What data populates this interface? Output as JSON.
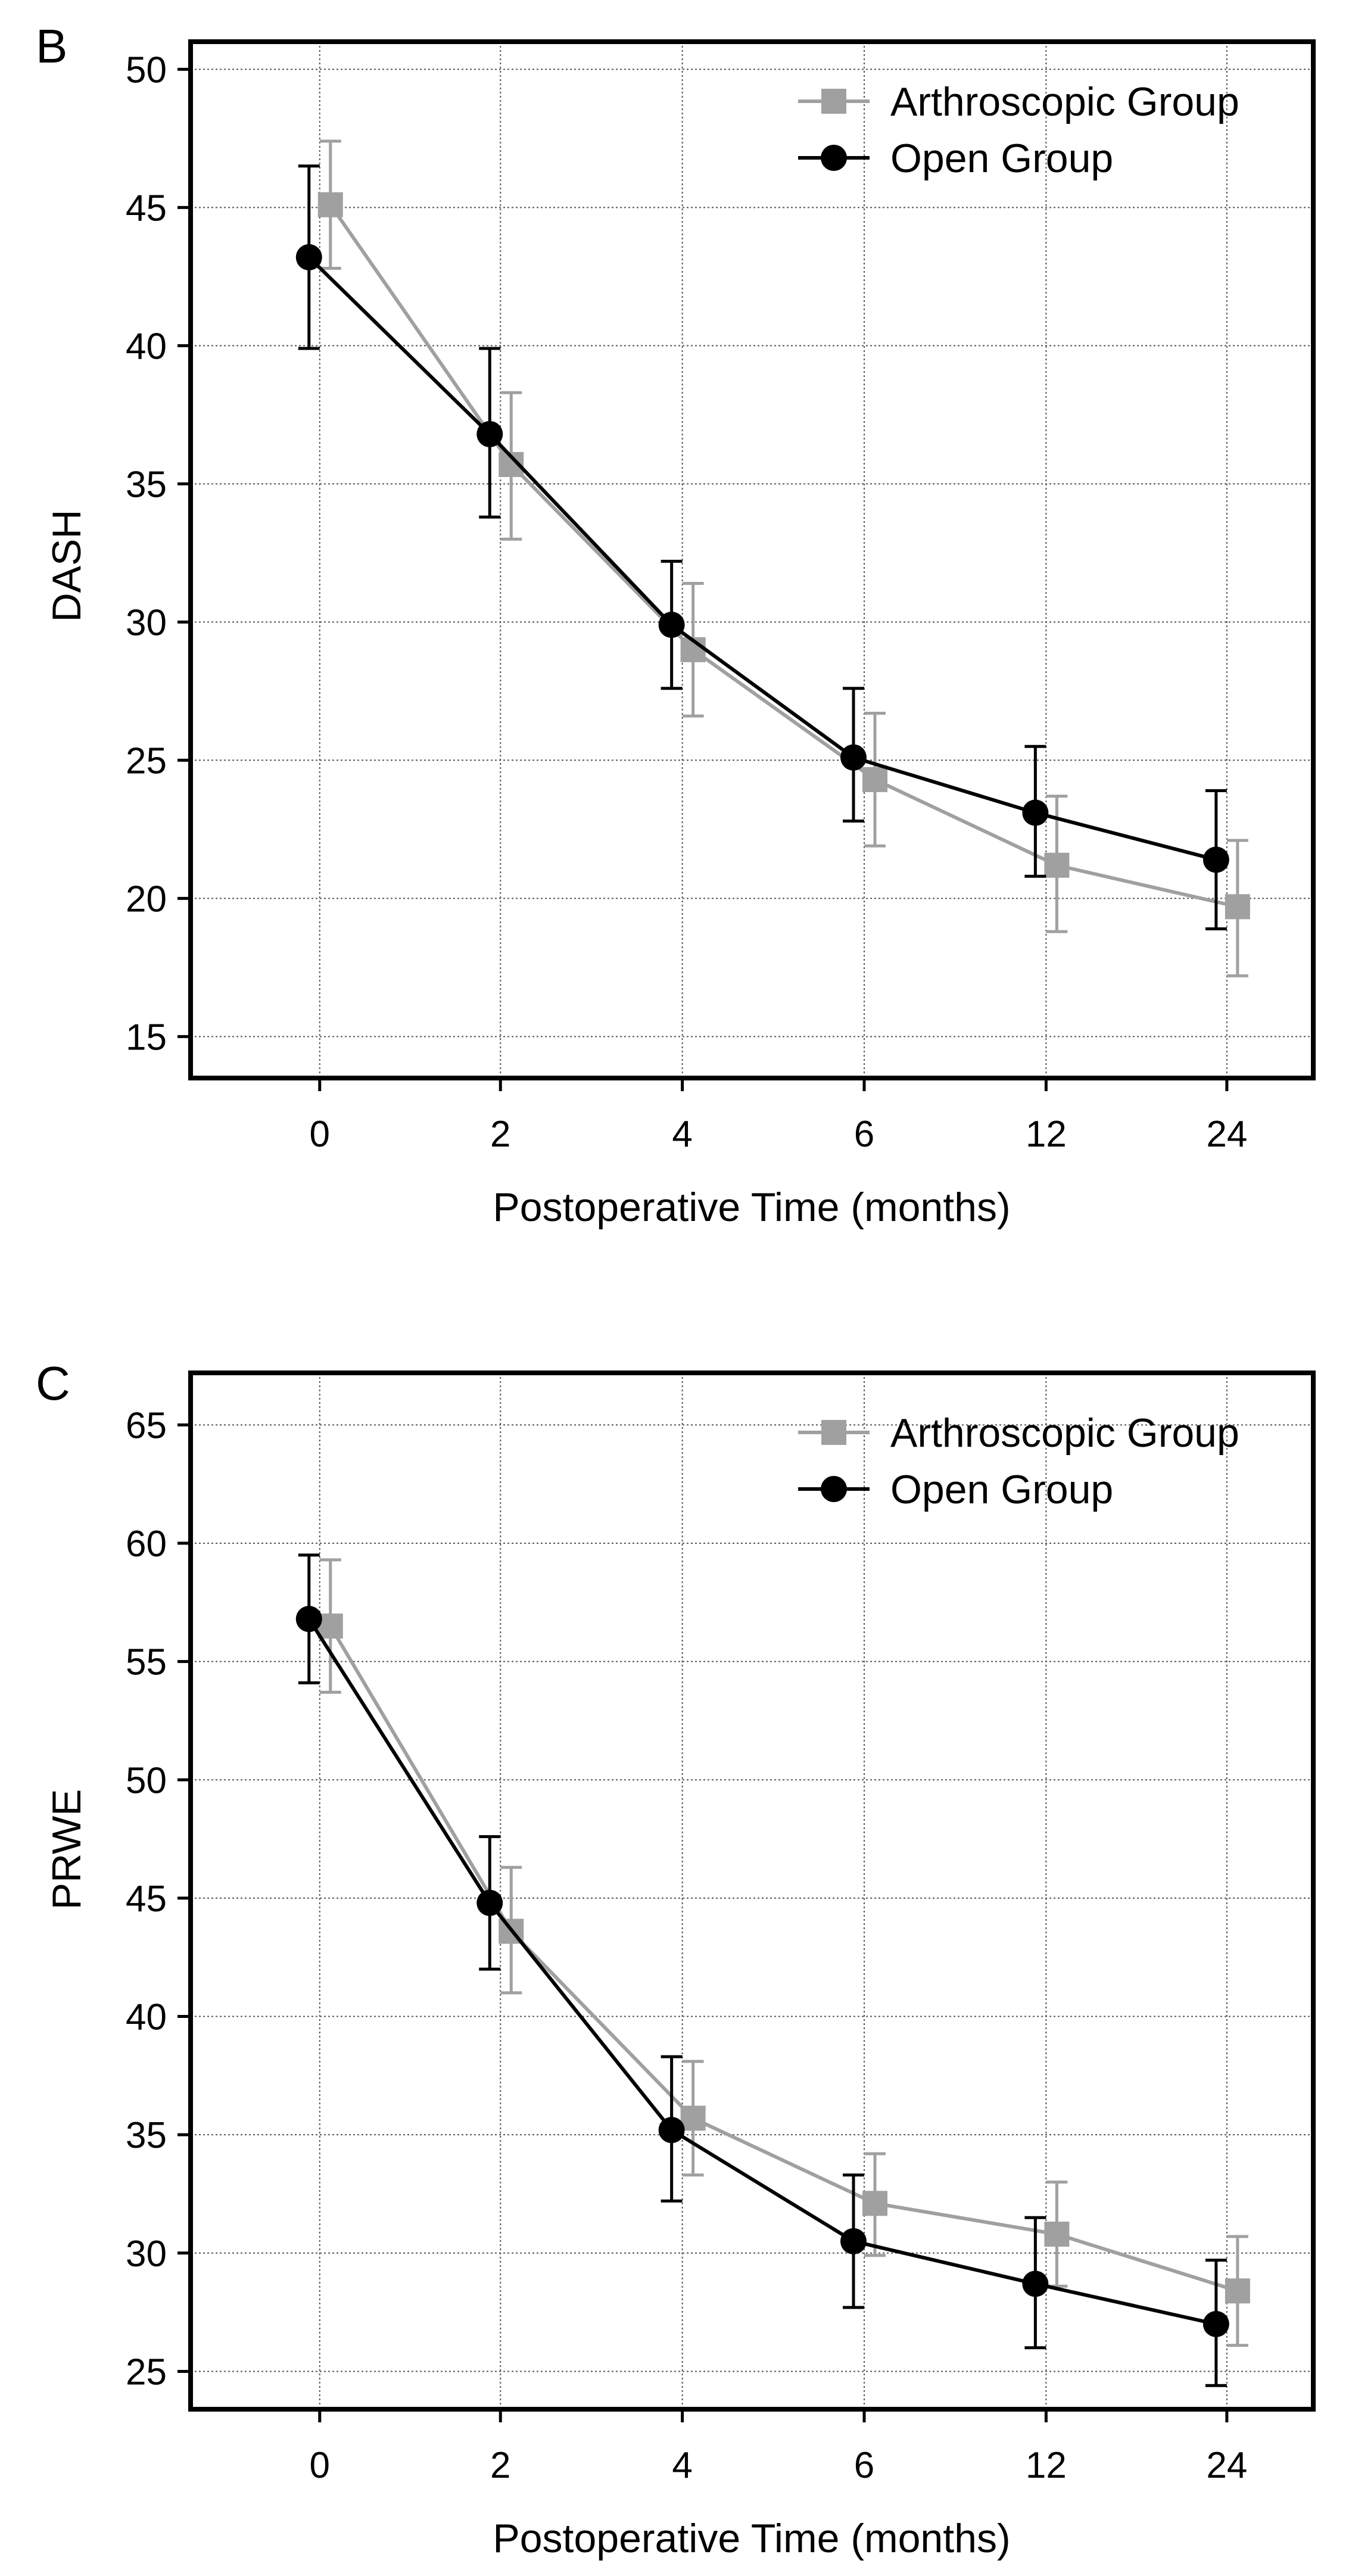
{
  "colors": {
    "arthroscopic": "#a0a0a0",
    "open": "#000000",
    "grid": "#555555",
    "frame": "#000000"
  },
  "chart_data": [
    {
      "panel_letter": "B",
      "type": "line",
      "xlabel": "Postoperative Time (months)",
      "ylabel": "DASH",
      "categories": [
        "0",
        "2",
        "4",
        "6",
        "12",
        "24"
      ],
      "ylim": [
        13.5,
        51
      ],
      "yticks": [
        15,
        20,
        25,
        30,
        35,
        40,
        45,
        50
      ],
      "grid": true,
      "legend_position": "top-right",
      "error_bars": true,
      "series": [
        {
          "name": "Arthroscopic Group",
          "marker": "square",
          "color": "#a0a0a0",
          "values": [
            45.1,
            35.7,
            29.0,
            24.3,
            21.2,
            19.7
          ],
          "error_low": [
            42.8,
            33.0,
            26.6,
            21.9,
            18.8,
            17.2
          ],
          "error_high": [
            47.4,
            38.3,
            31.4,
            26.7,
            23.7,
            22.1
          ]
        },
        {
          "name": "Open Group",
          "marker": "circle",
          "color": "#000000",
          "values": [
            43.2,
            36.8,
            29.9,
            25.1,
            23.1,
            21.4
          ],
          "error_low": [
            39.9,
            33.8,
            27.6,
            22.8,
            20.8,
            18.9
          ],
          "error_high": [
            46.5,
            39.9,
            32.2,
            27.6,
            25.5,
            23.9
          ]
        }
      ]
    },
    {
      "panel_letter": "C",
      "type": "line",
      "xlabel": "Postoperative Time (months)",
      "ylabel": "PRWE",
      "categories": [
        "0",
        "2",
        "4",
        "6",
        "12",
        "24"
      ],
      "ylim": [
        23.4,
        67.2
      ],
      "yticks": [
        25,
        30,
        35,
        40,
        45,
        50,
        55,
        60,
        65
      ],
      "grid": true,
      "legend_position": "top-right",
      "error_bars": true,
      "series": [
        {
          "name": "Arthroscopic Group",
          "marker": "square",
          "color": "#a0a0a0",
          "values": [
            56.5,
            43.6,
            35.7,
            32.1,
            30.8,
            28.4
          ],
          "error_low": [
            53.7,
            41.0,
            33.3,
            29.9,
            28.6,
            26.1
          ],
          "error_high": [
            59.3,
            46.3,
            38.1,
            34.2,
            33.0,
            30.7
          ]
        },
        {
          "name": "Open Group",
          "marker": "circle",
          "color": "#000000",
          "values": [
            56.8,
            44.8,
            35.2,
            30.5,
            28.7,
            27.0
          ],
          "error_low": [
            54.1,
            42.0,
            32.2,
            27.7,
            26.0,
            24.4
          ],
          "error_high": [
            59.5,
            47.6,
            38.3,
            33.3,
            31.5,
            29.7
          ]
        }
      ]
    }
  ]
}
